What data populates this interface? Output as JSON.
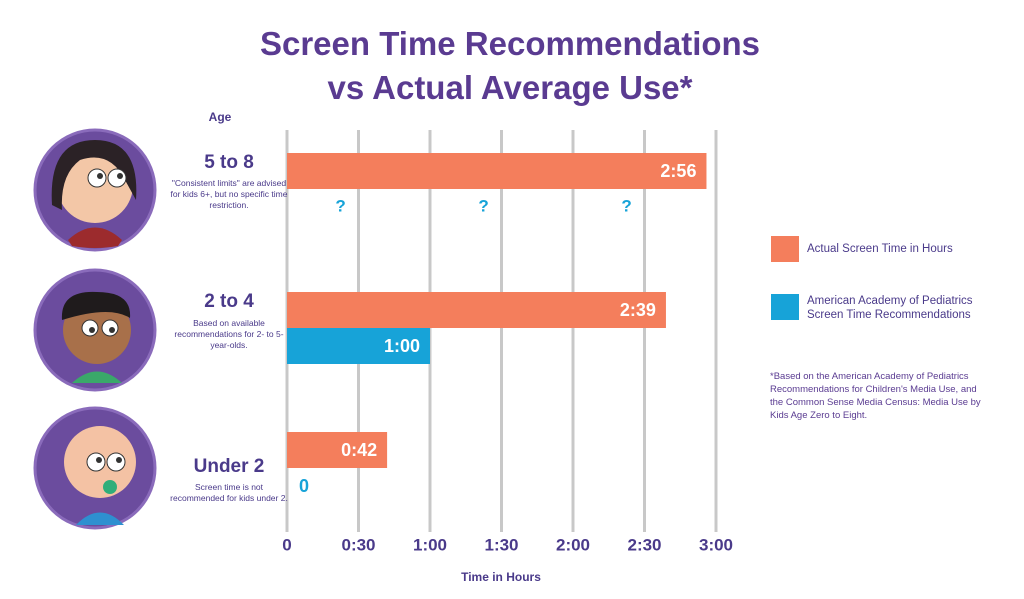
{
  "chart_data": {
    "type": "barh",
    "title": "Screen Time Recommendations vs Actual Average Use*",
    "y_axis_title": "Age",
    "x_axis_title": "Time in Hours",
    "categories": [
      "5 to 8",
      "2 to 4",
      "Under 2"
    ],
    "age_notes": [
      "\"Consistent limits\" are advised for kids 6+, but no specific time restriction.",
      "Based on available recommendations for 2- to 5-year-olds.",
      "Screen time is not recommended for kids under 2."
    ],
    "series": [
      {
        "name": "Actual Screen Time in Hours",
        "color": "#f47e5c",
        "values": [
          176,
          159,
          42
        ],
        "value_labels": [
          "2:56",
          "2:39",
          "0:42"
        ]
      },
      {
        "name": "American Academy of Pediatrics Screen Time Recommendations",
        "color": "#17a3d8",
        "values": [
          null,
          60,
          0
        ],
        "value_labels": [
          null,
          "1:00",
          "0"
        ]
      }
    ],
    "missing_label": "?",
    "xlim": [
      0,
      180
    ],
    "xticks": [
      0,
      {
        "value": 30,
        "label": "0:30"
      },
      {
        "value": 60,
        "label": "1:00"
      },
      {
        "value": 90,
        "label": "1:30"
      },
      {
        "value": 120,
        "label": "2:00"
      },
      {
        "value": 150,
        "label": "2:30"
      },
      {
        "value": 180,
        "label": "3:00"
      }
    ],
    "grid": true,
    "legend_position": "right",
    "footnote": "*Based on the American Academy of Pediatrics Recommendations for Children's Media Use, and the Common Sense Media Census: Media Use by Kids Age Zero to Eight."
  }
}
